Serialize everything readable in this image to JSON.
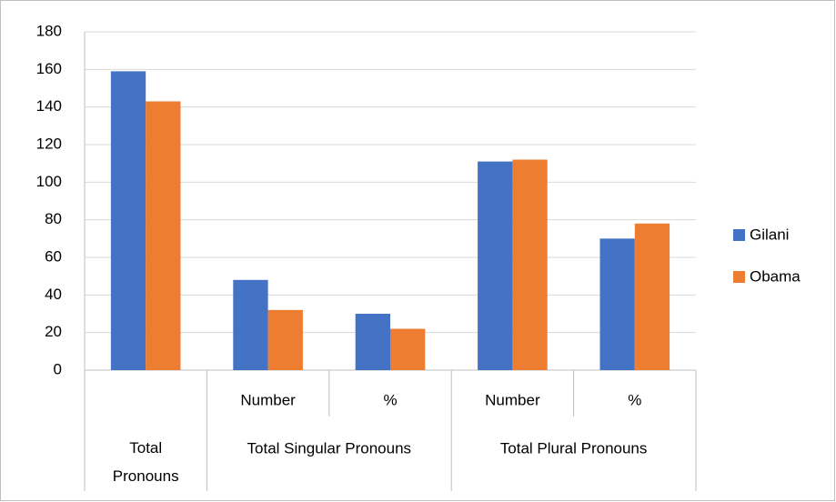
{
  "chart_data": {
    "type": "bar",
    "groups": [
      {
        "label": "Total Pronouns",
        "categories": [
          null
        ]
      },
      {
        "label": "Total Singular Pronouns",
        "categories": [
          "Number",
          "%"
        ]
      },
      {
        "label": "Total Plural Pronouns",
        "categories": [
          "Number",
          "%"
        ]
      }
    ],
    "series": [
      {
        "name": "Gilani",
        "color": "#4472c4",
        "values": [
          159,
          48,
          30,
          111,
          70
        ]
      },
      {
        "name": "Obama",
        "color": "#ed7d31",
        "values": [
          143,
          32,
          22,
          112,
          78
        ]
      }
    ],
    "ylim": [
      0,
      180
    ],
    "yticks": [
      0,
      20,
      40,
      60,
      80,
      100,
      120,
      140,
      160,
      180
    ],
    "grid": true,
    "legend": "right"
  }
}
